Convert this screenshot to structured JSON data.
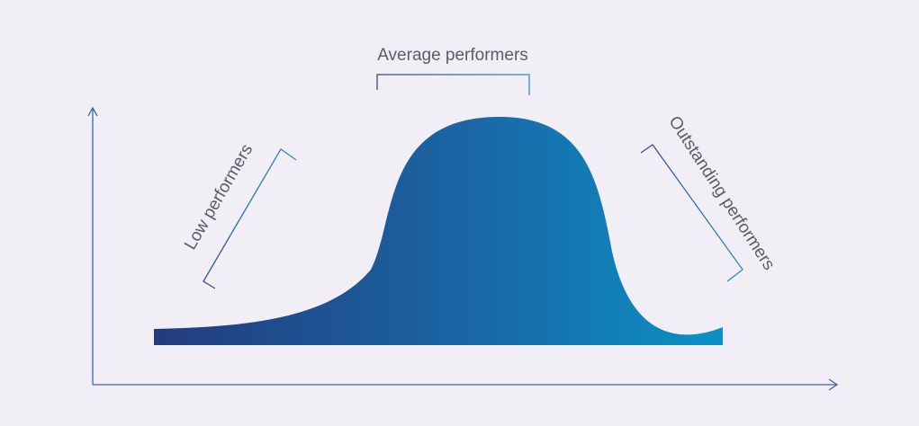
{
  "labels": {
    "average": "Average performers",
    "low": "Low performers",
    "outstanding": "Outstanding performers"
  },
  "colors": {
    "background": "#f2eef6",
    "curve_start": "#233b7e",
    "curve_mid": "#1a66a4",
    "curve_end": "#0b91c5",
    "axis": "#3f63b0",
    "bracket_dark": "#2f4a8e",
    "bracket_light": "#2c8fd0",
    "label_text": "#5d5a66"
  },
  "icons": {
    "y_axis_arrow": "arrow-up-icon",
    "x_axis_arrow": "arrow-right-icon"
  }
}
